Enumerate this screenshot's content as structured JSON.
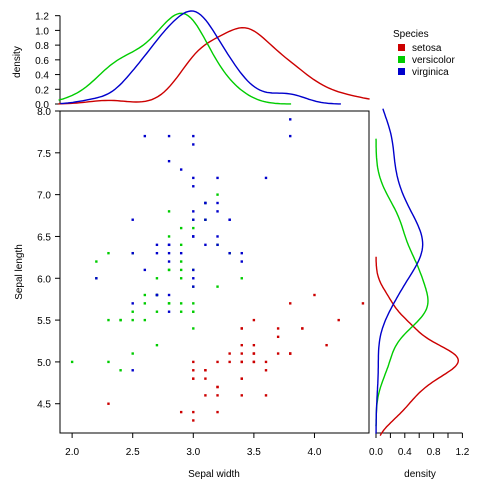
{
  "chart_data": {
    "type": "scatter",
    "xlabel": "Sepal width",
    "ylabel": "Sepal length",
    "xlim": [
      1.9,
      4.45
    ],
    "ylim": [
      4.15,
      8.0
    ],
    "xticks": [
      "2.0",
      "2.5",
      "3.0",
      "3.5",
      "4.0"
    ],
    "yticks": [
      "4.5",
      "5.0",
      "5.5",
      "6.0",
      "6.5",
      "7.0",
      "7.5",
      "8.0"
    ],
    "top_density": {
      "ylabel": "density",
      "ylim": [
        0,
        1.25
      ],
      "yticks": [
        "0.0",
        "0.2",
        "0.4",
        "0.6",
        "0.8",
        "1.0",
        "1.2"
      ]
    },
    "right_density": {
      "xlabel": "density",
      "xlim": [
        0,
        1.25
      ],
      "xticks": [
        "0.0",
        "0.4",
        "0.8",
        "1.2"
      ]
    },
    "legend": {
      "title": "Species",
      "position": "top-right",
      "entries": [
        {
          "label": "setosa",
          "color": "#cc0000"
        },
        {
          "label": "versicolor",
          "color": "#00cc00"
        },
        {
          "label": "virginica",
          "color": "#0000cc"
        }
      ]
    },
    "series": [
      {
        "name": "setosa",
        "color": "#cc0000",
        "points": [
          [
            3.5,
            5.1
          ],
          [
            3.0,
            4.9
          ],
          [
            3.2,
            4.7
          ],
          [
            3.1,
            4.6
          ],
          [
            3.6,
            5.0
          ],
          [
            3.9,
            5.4
          ],
          [
            3.4,
            4.6
          ],
          [
            3.4,
            5.0
          ],
          [
            2.9,
            4.4
          ],
          [
            3.1,
            4.9
          ],
          [
            3.7,
            5.4
          ],
          [
            3.4,
            4.8
          ],
          [
            3.0,
            4.8
          ],
          [
            3.0,
            4.3
          ],
          [
            4.0,
            5.8
          ],
          [
            4.4,
            5.7
          ],
          [
            3.9,
            5.4
          ],
          [
            3.5,
            5.1
          ],
          [
            3.8,
            5.7
          ],
          [
            3.8,
            5.1
          ],
          [
            3.4,
            5.4
          ],
          [
            3.7,
            5.1
          ],
          [
            3.6,
            4.6
          ],
          [
            3.3,
            5.1
          ],
          [
            3.4,
            4.8
          ],
          [
            3.0,
            5.0
          ],
          [
            3.4,
            5.0
          ],
          [
            3.5,
            5.2
          ],
          [
            3.4,
            5.2
          ],
          [
            3.2,
            4.7
          ],
          [
            3.1,
            4.8
          ],
          [
            3.4,
            5.4
          ],
          [
            4.1,
            5.2
          ],
          [
            4.2,
            5.5
          ],
          [
            3.1,
            4.9
          ],
          [
            3.2,
            5.0
          ],
          [
            3.5,
            5.5
          ],
          [
            3.6,
            4.9
          ],
          [
            3.0,
            4.4
          ],
          [
            3.4,
            5.1
          ],
          [
            3.5,
            5.0
          ],
          [
            2.3,
            4.5
          ],
          [
            3.2,
            4.4
          ],
          [
            3.5,
            5.0
          ],
          [
            3.8,
            5.1
          ],
          [
            3.0,
            4.8
          ],
          [
            3.8,
            5.1
          ],
          [
            3.2,
            4.6
          ],
          [
            3.7,
            5.3
          ],
          [
            3.3,
            5.0
          ]
        ]
      },
      {
        "name": "versicolor",
        "color": "#00cc00",
        "points": [
          [
            3.2,
            7.0
          ],
          [
            3.2,
            6.4
          ],
          [
            3.1,
            6.9
          ],
          [
            2.3,
            5.5
          ],
          [
            2.8,
            6.5
          ],
          [
            2.8,
            5.7
          ],
          [
            3.3,
            6.3
          ],
          [
            2.4,
            4.9
          ],
          [
            2.9,
            6.6
          ],
          [
            2.7,
            5.2
          ],
          [
            2.0,
            5.0
          ],
          [
            3.0,
            5.9
          ],
          [
            2.2,
            6.0
          ],
          [
            2.9,
            6.1
          ],
          [
            2.9,
            5.6
          ],
          [
            3.1,
            6.7
          ],
          [
            3.0,
            5.6
          ],
          [
            2.7,
            5.8
          ],
          [
            2.2,
            6.2
          ],
          [
            2.5,
            5.6
          ],
          [
            3.2,
            5.9
          ],
          [
            2.8,
            6.1
          ],
          [
            2.5,
            6.3
          ],
          [
            2.8,
            6.1
          ],
          [
            2.9,
            6.4
          ],
          [
            3.0,
            6.6
          ],
          [
            2.8,
            6.8
          ],
          [
            3.0,
            6.7
          ],
          [
            2.9,
            6.0
          ],
          [
            2.6,
            5.7
          ],
          [
            2.4,
            5.5
          ],
          [
            2.4,
            5.5
          ],
          [
            2.7,
            5.8
          ],
          [
            2.7,
            6.0
          ],
          [
            3.0,
            5.4
          ],
          [
            3.4,
            6.0
          ],
          [
            3.1,
            6.7
          ],
          [
            2.3,
            6.3
          ],
          [
            3.0,
            5.6
          ],
          [
            2.5,
            5.5
          ],
          [
            2.6,
            5.5
          ],
          [
            3.0,
            6.1
          ],
          [
            2.6,
            5.8
          ],
          [
            2.3,
            5.0
          ],
          [
            2.7,
            5.6
          ],
          [
            3.0,
            5.7
          ],
          [
            2.9,
            5.7
          ],
          [
            2.9,
            6.2
          ],
          [
            2.5,
            5.1
          ],
          [
            2.8,
            5.7
          ]
        ]
      },
      {
        "name": "virginica",
        "color": "#0000cc",
        "points": [
          [
            3.3,
            6.3
          ],
          [
            2.7,
            5.8
          ],
          [
            3.0,
            7.1
          ],
          [
            2.9,
            6.3
          ],
          [
            3.0,
            6.5
          ],
          [
            3.0,
            7.6
          ],
          [
            2.5,
            4.9
          ],
          [
            2.9,
            7.3
          ],
          [
            2.5,
            6.7
          ],
          [
            3.6,
            7.2
          ],
          [
            3.2,
            6.5
          ],
          [
            2.7,
            6.4
          ],
          [
            3.0,
            6.8
          ],
          [
            2.5,
            5.7
          ],
          [
            2.8,
            5.8
          ],
          [
            3.2,
            6.4
          ],
          [
            3.0,
            6.5
          ],
          [
            3.8,
            7.7
          ],
          [
            2.6,
            7.7
          ],
          [
            2.2,
            6.0
          ],
          [
            3.2,
            6.9
          ],
          [
            2.8,
            5.6
          ],
          [
            2.8,
            7.7
          ],
          [
            2.7,
            6.3
          ],
          [
            3.3,
            6.7
          ],
          [
            3.2,
            7.2
          ],
          [
            2.8,
            6.2
          ],
          [
            3.0,
            6.1
          ],
          [
            2.8,
            6.4
          ],
          [
            3.0,
            7.2
          ],
          [
            2.8,
            7.4
          ],
          [
            3.8,
            7.9
          ],
          [
            2.8,
            6.4
          ],
          [
            2.8,
            6.3
          ],
          [
            2.6,
            6.1
          ],
          [
            3.0,
            7.7
          ],
          [
            3.4,
            6.3
          ],
          [
            3.1,
            6.4
          ],
          [
            3.0,
            6.0
          ],
          [
            3.1,
            6.9
          ],
          [
            3.1,
            6.7
          ],
          [
            3.1,
            6.9
          ],
          [
            2.7,
            5.8
          ],
          [
            3.2,
            6.8
          ],
          [
            3.3,
            6.7
          ],
          [
            3.0,
            6.7
          ],
          [
            2.5,
            6.3
          ],
          [
            3.0,
            6.5
          ],
          [
            3.4,
            6.2
          ],
          [
            3.0,
            5.9
          ]
        ]
      }
    ]
  }
}
